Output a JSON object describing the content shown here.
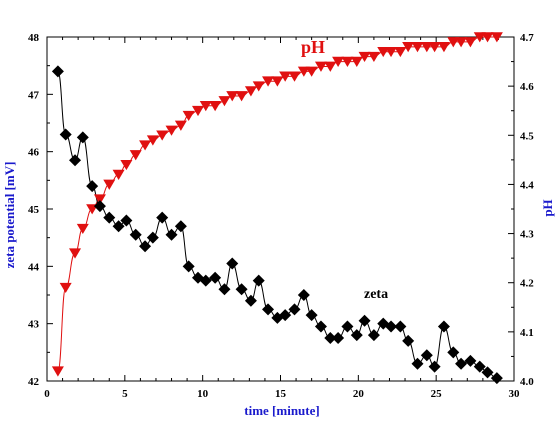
{
  "chart_data": {
    "type": "line",
    "xlabel": "time [minute]",
    "ylabel_left": "zeta potential [mV]",
    "ylabel_right": "pH",
    "xlim": [
      0,
      30
    ],
    "ylim_left": [
      42,
      48
    ],
    "ylim_right": [
      4.0,
      4.7
    ],
    "x_ticks": [
      "0",
      "5",
      "10",
      "15",
      "20",
      "25",
      "30"
    ],
    "y_left_ticks": [
      "42",
      "43",
      "44",
      "45",
      "46",
      "47",
      "48"
    ],
    "y_right_ticks": [
      "4.0",
      "4.1",
      "4.2",
      "4.3",
      "4.4",
      "4.5",
      "4.6",
      "4.7"
    ],
    "grid": false,
    "annotations": [
      {
        "id": "ph",
        "text": "pH",
        "color": "#e01010"
      },
      {
        "id": "zeta",
        "text": "zeta",
        "color": "#000000"
      }
    ],
    "series": [
      {
        "id": "ph",
        "axis": "right",
        "marker": "triangle-down",
        "color": "#e01010",
        "x": [
          0.7,
          1.2,
          1.8,
          2.3,
          2.9,
          3.4,
          4.0,
          4.6,
          5.1,
          5.7,
          6.3,
          6.8,
          7.4,
          8.0,
          8.6,
          9.1,
          9.7,
          10.2,
          10.8,
          11.4,
          11.9,
          12.5,
          13.1,
          13.6,
          14.2,
          14.8,
          15.3,
          15.9,
          16.5,
          17.0,
          17.6,
          18.2,
          18.7,
          19.3,
          19.9,
          20.4,
          21.0,
          21.6,
          22.1,
          22.7,
          23.2,
          23.8,
          24.4,
          24.9,
          25.5,
          26.1,
          26.6,
          27.2,
          27.8,
          28.3,
          28.9
        ],
        "values": [
          4.02,
          4.19,
          4.26,
          4.31,
          4.35,
          4.37,
          4.4,
          4.42,
          4.44,
          4.46,
          4.48,
          4.49,
          4.5,
          4.51,
          4.52,
          4.54,
          4.55,
          4.56,
          4.56,
          4.57,
          4.58,
          4.58,
          4.59,
          4.6,
          4.61,
          4.61,
          4.62,
          4.62,
          4.63,
          4.63,
          4.64,
          4.64,
          4.65,
          4.65,
          4.65,
          4.66,
          4.66,
          4.67,
          4.67,
          4.67,
          4.68,
          4.68,
          4.68,
          4.68,
          4.68,
          4.69,
          4.69,
          4.69,
          4.7,
          4.7,
          4.7
        ]
      },
      {
        "id": "zeta",
        "axis": "left",
        "marker": "diamond",
        "color": "#000000",
        "x": [
          0.7,
          1.2,
          1.8,
          2.3,
          2.9,
          3.4,
          4.0,
          4.6,
          5.1,
          5.7,
          6.3,
          6.8,
          7.4,
          8.0,
          8.6,
          9.1,
          9.7,
          10.2,
          10.8,
          11.4,
          11.9,
          12.5,
          13.1,
          13.6,
          14.2,
          14.8,
          15.3,
          15.9,
          16.5,
          17.0,
          17.6,
          18.2,
          18.7,
          19.3,
          19.9,
          20.4,
          21.0,
          21.6,
          22.1,
          22.7,
          23.2,
          23.8,
          24.4,
          24.9,
          25.5,
          26.1,
          26.6,
          27.2,
          27.8,
          28.3,
          28.9
        ],
        "values": [
          47.4,
          46.3,
          45.85,
          46.25,
          45.4,
          45.05,
          44.85,
          44.7,
          44.8,
          44.55,
          44.35,
          44.5,
          44.85,
          44.55,
          44.7,
          44.0,
          43.8,
          43.75,
          43.8,
          43.6,
          44.05,
          43.6,
          43.4,
          43.75,
          43.25,
          43.1,
          43.15,
          43.25,
          43.5,
          43.15,
          42.95,
          42.75,
          42.75,
          42.95,
          42.8,
          43.05,
          42.8,
          43.0,
          42.95,
          42.95,
          42.7,
          42.3,
          42.45,
          42.25,
          42.95,
          42.5,
          42.3,
          42.35,
          42.25,
          42.15,
          42.05
        ]
      }
    ]
  }
}
